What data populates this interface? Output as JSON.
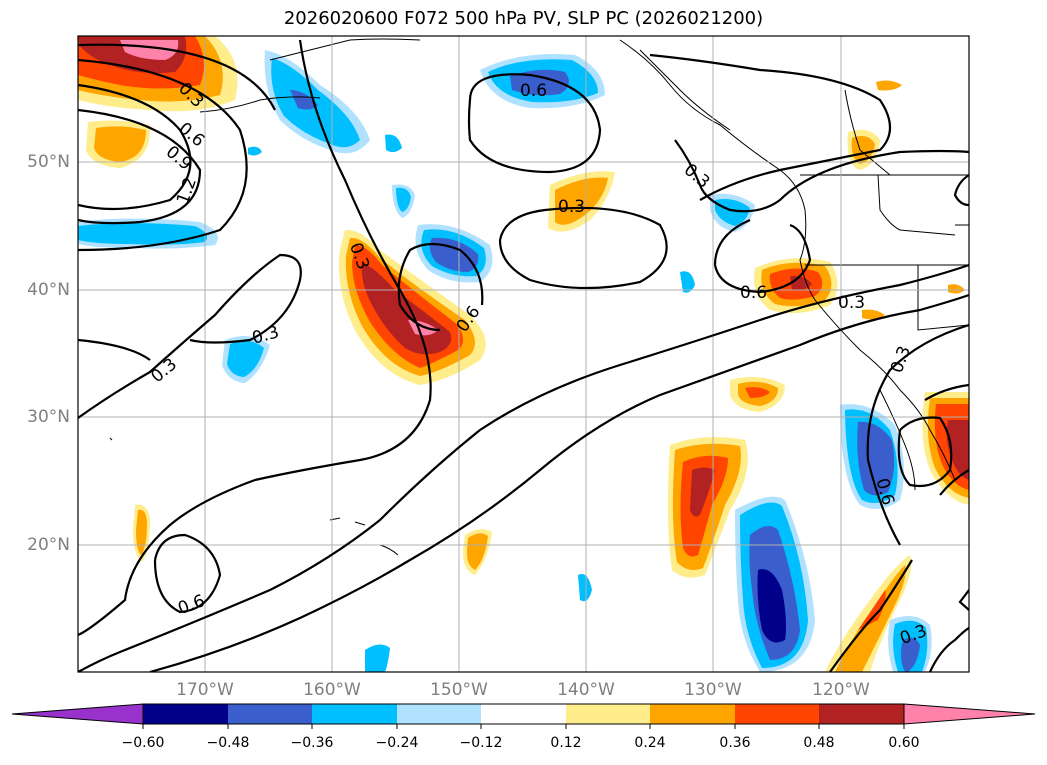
{
  "title": "2026020600 F072 500 hPa PV, SLP PC (2026021200)",
  "lat_labels": [
    "50°N",
    "40°N",
    "30°N",
    "20°N"
  ],
  "lon_labels": [
    "170°W",
    "160°W",
    "150°W",
    "140°W",
    "130°W",
    "120°W"
  ],
  "colorbar": {
    "ticks": [
      "−0.60",
      "−0.48",
      "−0.36",
      "−0.24",
      "−0.12",
      "0.12",
      "0.24",
      "0.36",
      "0.48",
      "0.60"
    ],
    "colors": [
      "#9932cc",
      "#00008b",
      "#3a5fcd",
      "#00bfff",
      "#b0e2ff",
      "#ffffff",
      "#ffec8b",
      "#ffa500",
      "#ff4500",
      "#b22222",
      "#ff82ab"
    ]
  },
  "contour_labels": [
    "0.3",
    "0.6",
    "0.9",
    "1.2",
    "0.6",
    "0.3",
    "0.3",
    "0.3",
    "0.6",
    "0.3",
    "0.3",
    "0.6",
    "0.3",
    "0.6",
    "0.3",
    "0.6",
    "0.3"
  ],
  "colors": {
    "grid": "#b0b0b0",
    "contour": "#000000",
    "axis_label": "#808080"
  }
}
